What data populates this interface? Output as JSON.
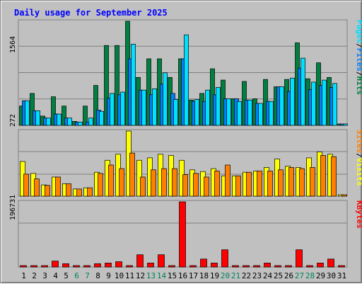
{
  "chart_data": {
    "type": "bar",
    "title": "Daily usage for September 2025",
    "categories": [
      "1",
      "2",
      "3",
      "4",
      "5",
      "6",
      "7",
      "8",
      "9",
      "10",
      "11",
      "12",
      "13",
      "14",
      "15",
      "16",
      "17",
      "18",
      "19",
      "20",
      "21",
      "22",
      "23",
      "24",
      "25",
      "26",
      "27",
      "28",
      "29",
      "30",
      "31"
    ],
    "weekend_days": [
      "6",
      "7",
      "13",
      "14",
      "20",
      "21",
      "27",
      "28"
    ],
    "panels": [
      {
        "id": "hits-files-pages",
        "ymax": 1564,
        "tick_label": "1564",
        "legend": [
          "Pages",
          "/",
          "Files",
          "/",
          "Hits"
        ],
        "series": [
          {
            "name": "Hits",
            "color": "#008040",
            "values": [
              290,
              480,
              140,
              430,
              290,
              60,
              290,
              600,
              1200,
              1200,
              1564,
              720,
              1000,
              1000,
              720,
              1000,
              380,
              480,
              850,
              680,
              400,
              660,
              400,
              690,
              580,
              690,
              1240,
              700,
              940,
              720,
              0
            ]
          },
          {
            "name": "Files",
            "color": "#0080ff",
            "values": [
              370,
              220,
              110,
              170,
              110,
              50,
              50,
              230,
              410,
              460,
              1000,
              530,
              460,
              620,
              480,
              1000,
              360,
              360,
              460,
              400,
              400,
              380,
              330,
              360,
              580,
              510,
              860,
              540,
              600,
              570,
              0
            ]
          },
          {
            "name": "Pages",
            "color": "#00e0ff",
            "values": [
              370,
              220,
              110,
              170,
              110,
              50,
              110,
              210,
              480,
              500,
              1220,
              530,
              550,
              790,
              390,
              1360,
              390,
              530,
              570,
              400,
              360,
              380,
              330,
              360,
              580,
              710,
              1010,
              650,
              680,
              630,
              0
            ]
          }
        ]
      },
      {
        "id": "visits-sites",
        "ymax": 272,
        "tick_label": "272",
        "legend": [
          "Sites",
          "/",
          "Visits"
        ],
        "series": [
          {
            "name": "Visits",
            "color": "#ffff00",
            "values": [
              145,
              95,
              47,
              80,
              52,
              30,
              35,
              100,
              150,
              175,
              272,
              150,
              160,
              175,
              170,
              150,
              110,
              103,
              115,
              85,
              85,
              100,
              105,
              120,
              155,
              125,
              120,
              160,
              185,
              175,
              0
            ]
          },
          {
            "name": "Sites",
            "color": "#ff8000",
            "values": [
              92,
              72,
              45,
              80,
              52,
              30,
              35,
              95,
              130,
              115,
              180,
              80,
              110,
              115,
              115,
              90,
              95,
              80,
              105,
              130,
              85,
              100,
              105,
              105,
              110,
              120,
              115,
              120,
              170,
              165,
              0
            ]
          }
        ]
      },
      {
        "id": "kbytes",
        "ymax": 196731,
        "tick_label": "196731",
        "legend": [
          "KBytes"
        ],
        "series": [
          {
            "name": "KBytes",
            "color": "#ff0000",
            "values": [
              0,
              0,
              0,
              18000,
              10000,
              0,
              0,
              10000,
              12000,
              16000,
              0,
              37000,
              12000,
              37000,
              0,
              196731,
              0,
              24000,
              12000,
              52000,
              0,
              0,
              0,
              12000,
              4000,
              0,
              52000,
              0,
              12000,
              24000,
              0
            ]
          }
        ]
      }
    ]
  }
}
